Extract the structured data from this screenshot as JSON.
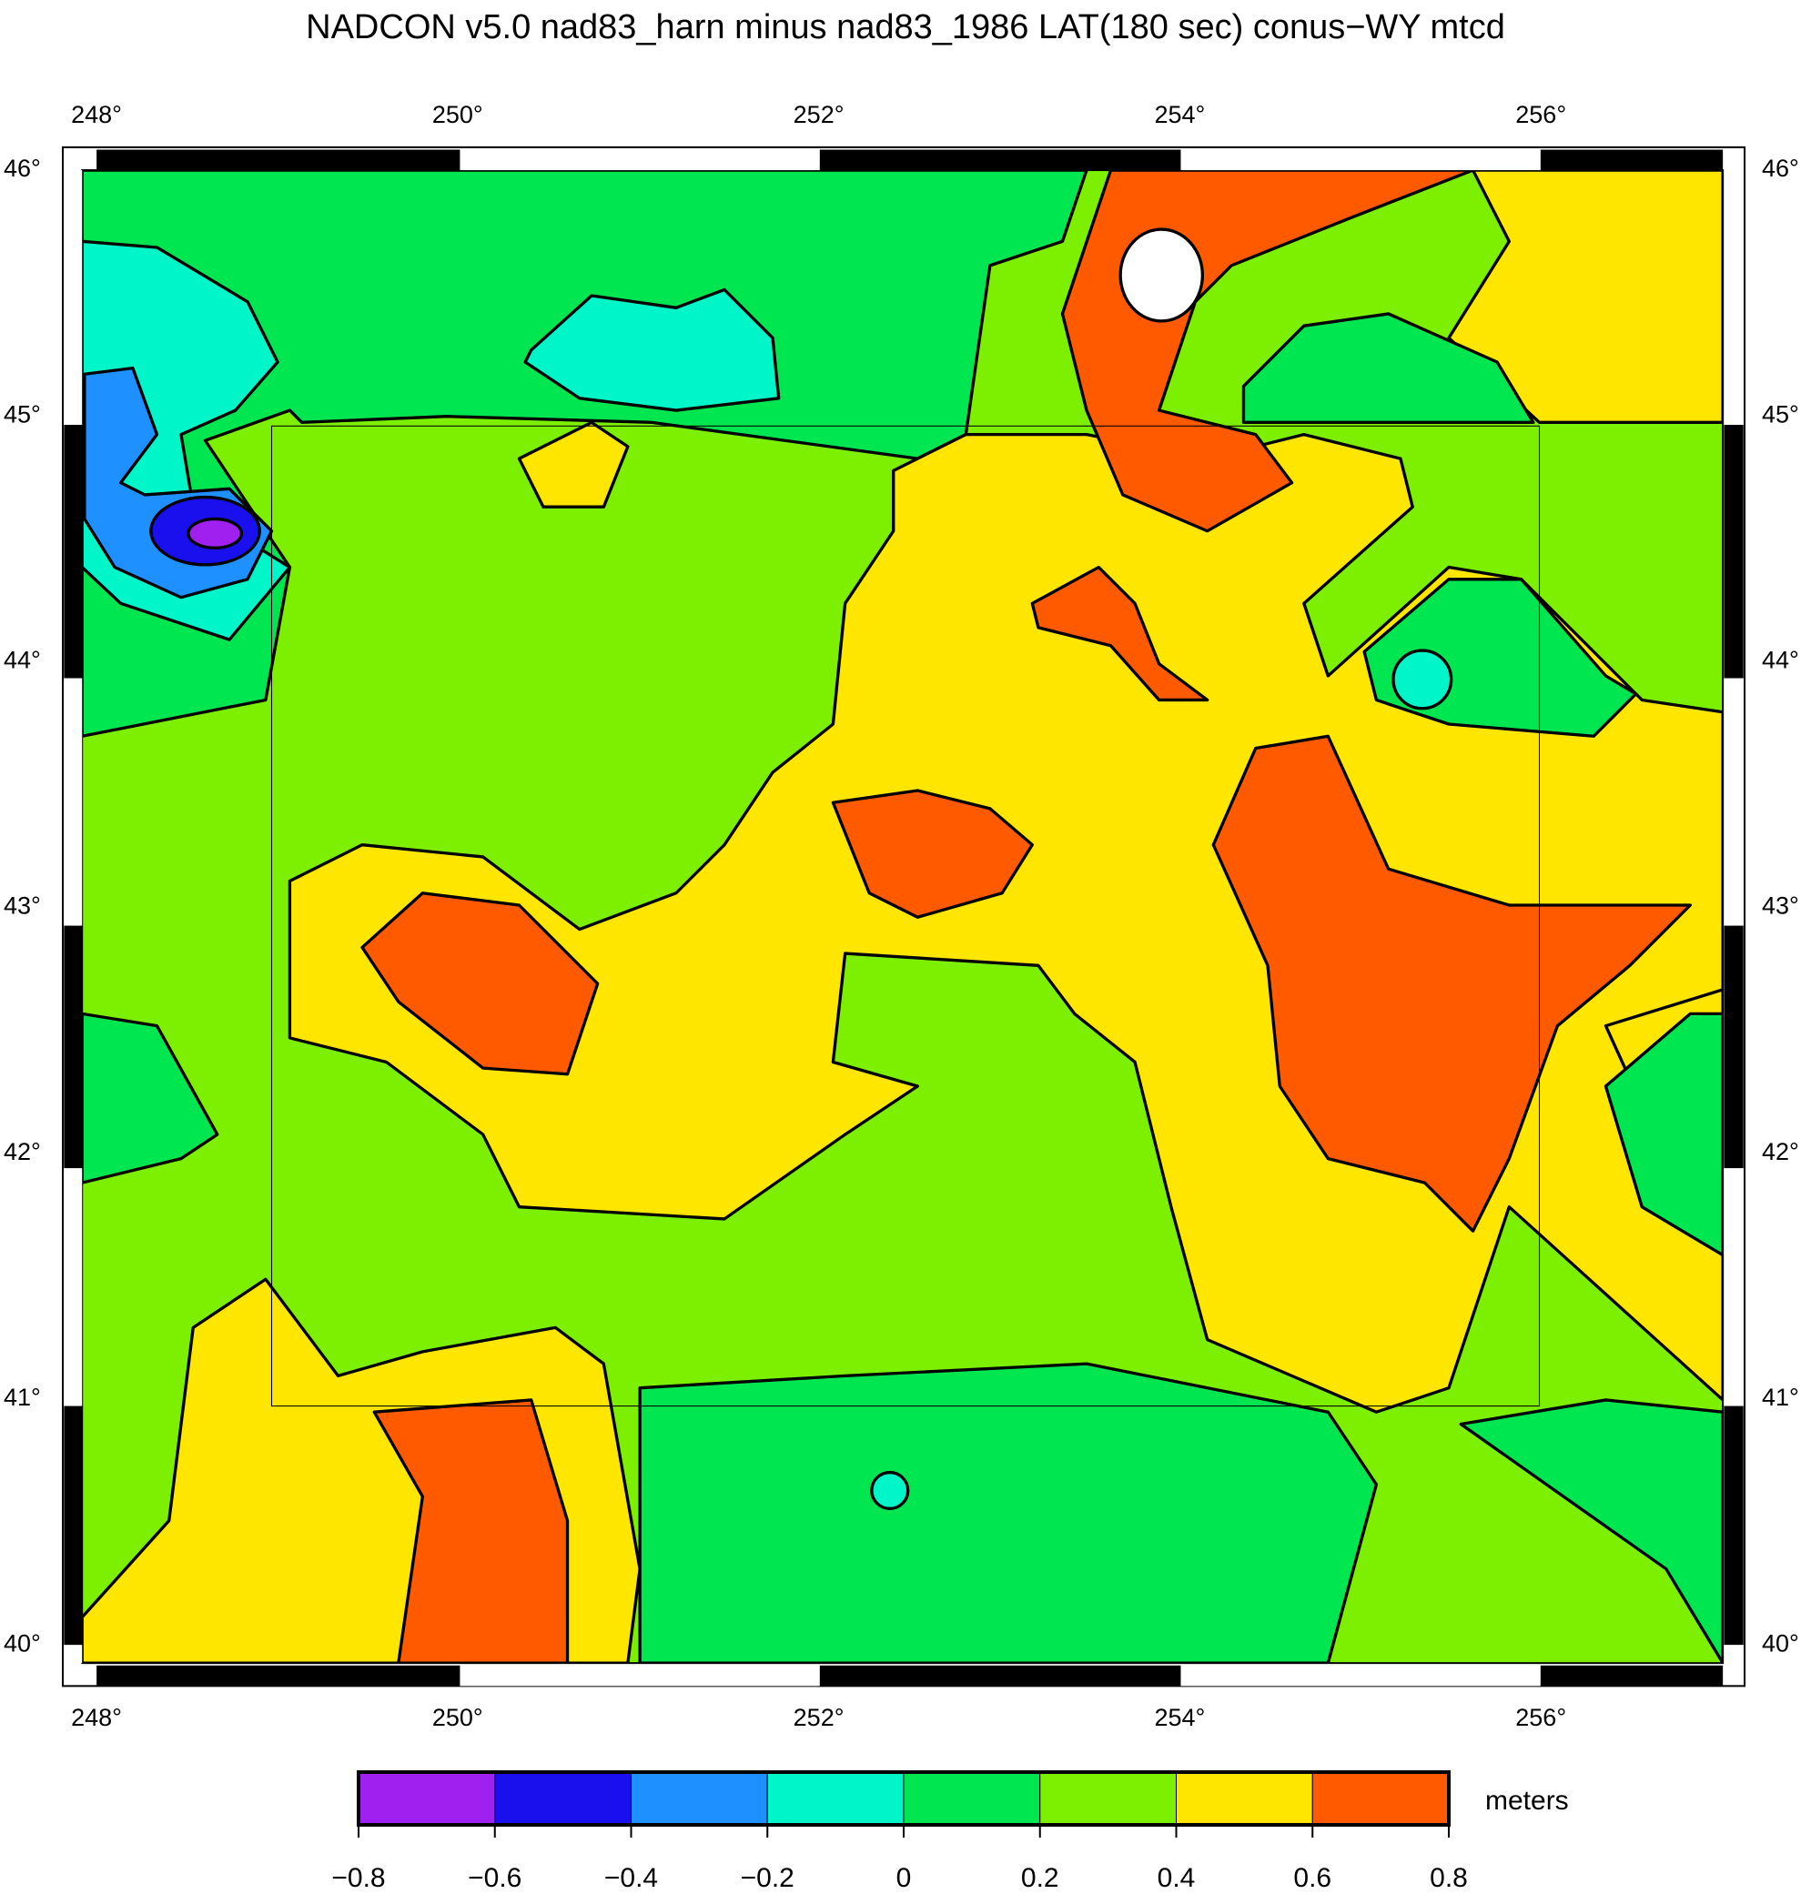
{
  "title": "NADCON v5.0 nad83_harn minus nad83_1986 LAT(180 sec) conus−WY mtcd",
  "map": {
    "lon_ticks": [
      "248°",
      "250°",
      "252°",
      "254°",
      "256°"
    ],
    "lat_ticks": [
      "46°",
      "45°",
      "44°",
      "43°",
      "42°",
      "41°",
      "40°"
    ]
  },
  "colorbar": {
    "unit": "meters",
    "ticks": [
      "−0.8",
      "−0.6",
      "−0.4",
      "−0.2",
      "0",
      "0.2",
      "0.4",
      "0.6",
      "0.8"
    ],
    "colors": [
      "#a020f0",
      "#1a10ee",
      "#1e90ff",
      "#00f5c8",
      "#00e650",
      "#7cf000",
      "#ffe600",
      "#ff5a00"
    ]
  }
}
